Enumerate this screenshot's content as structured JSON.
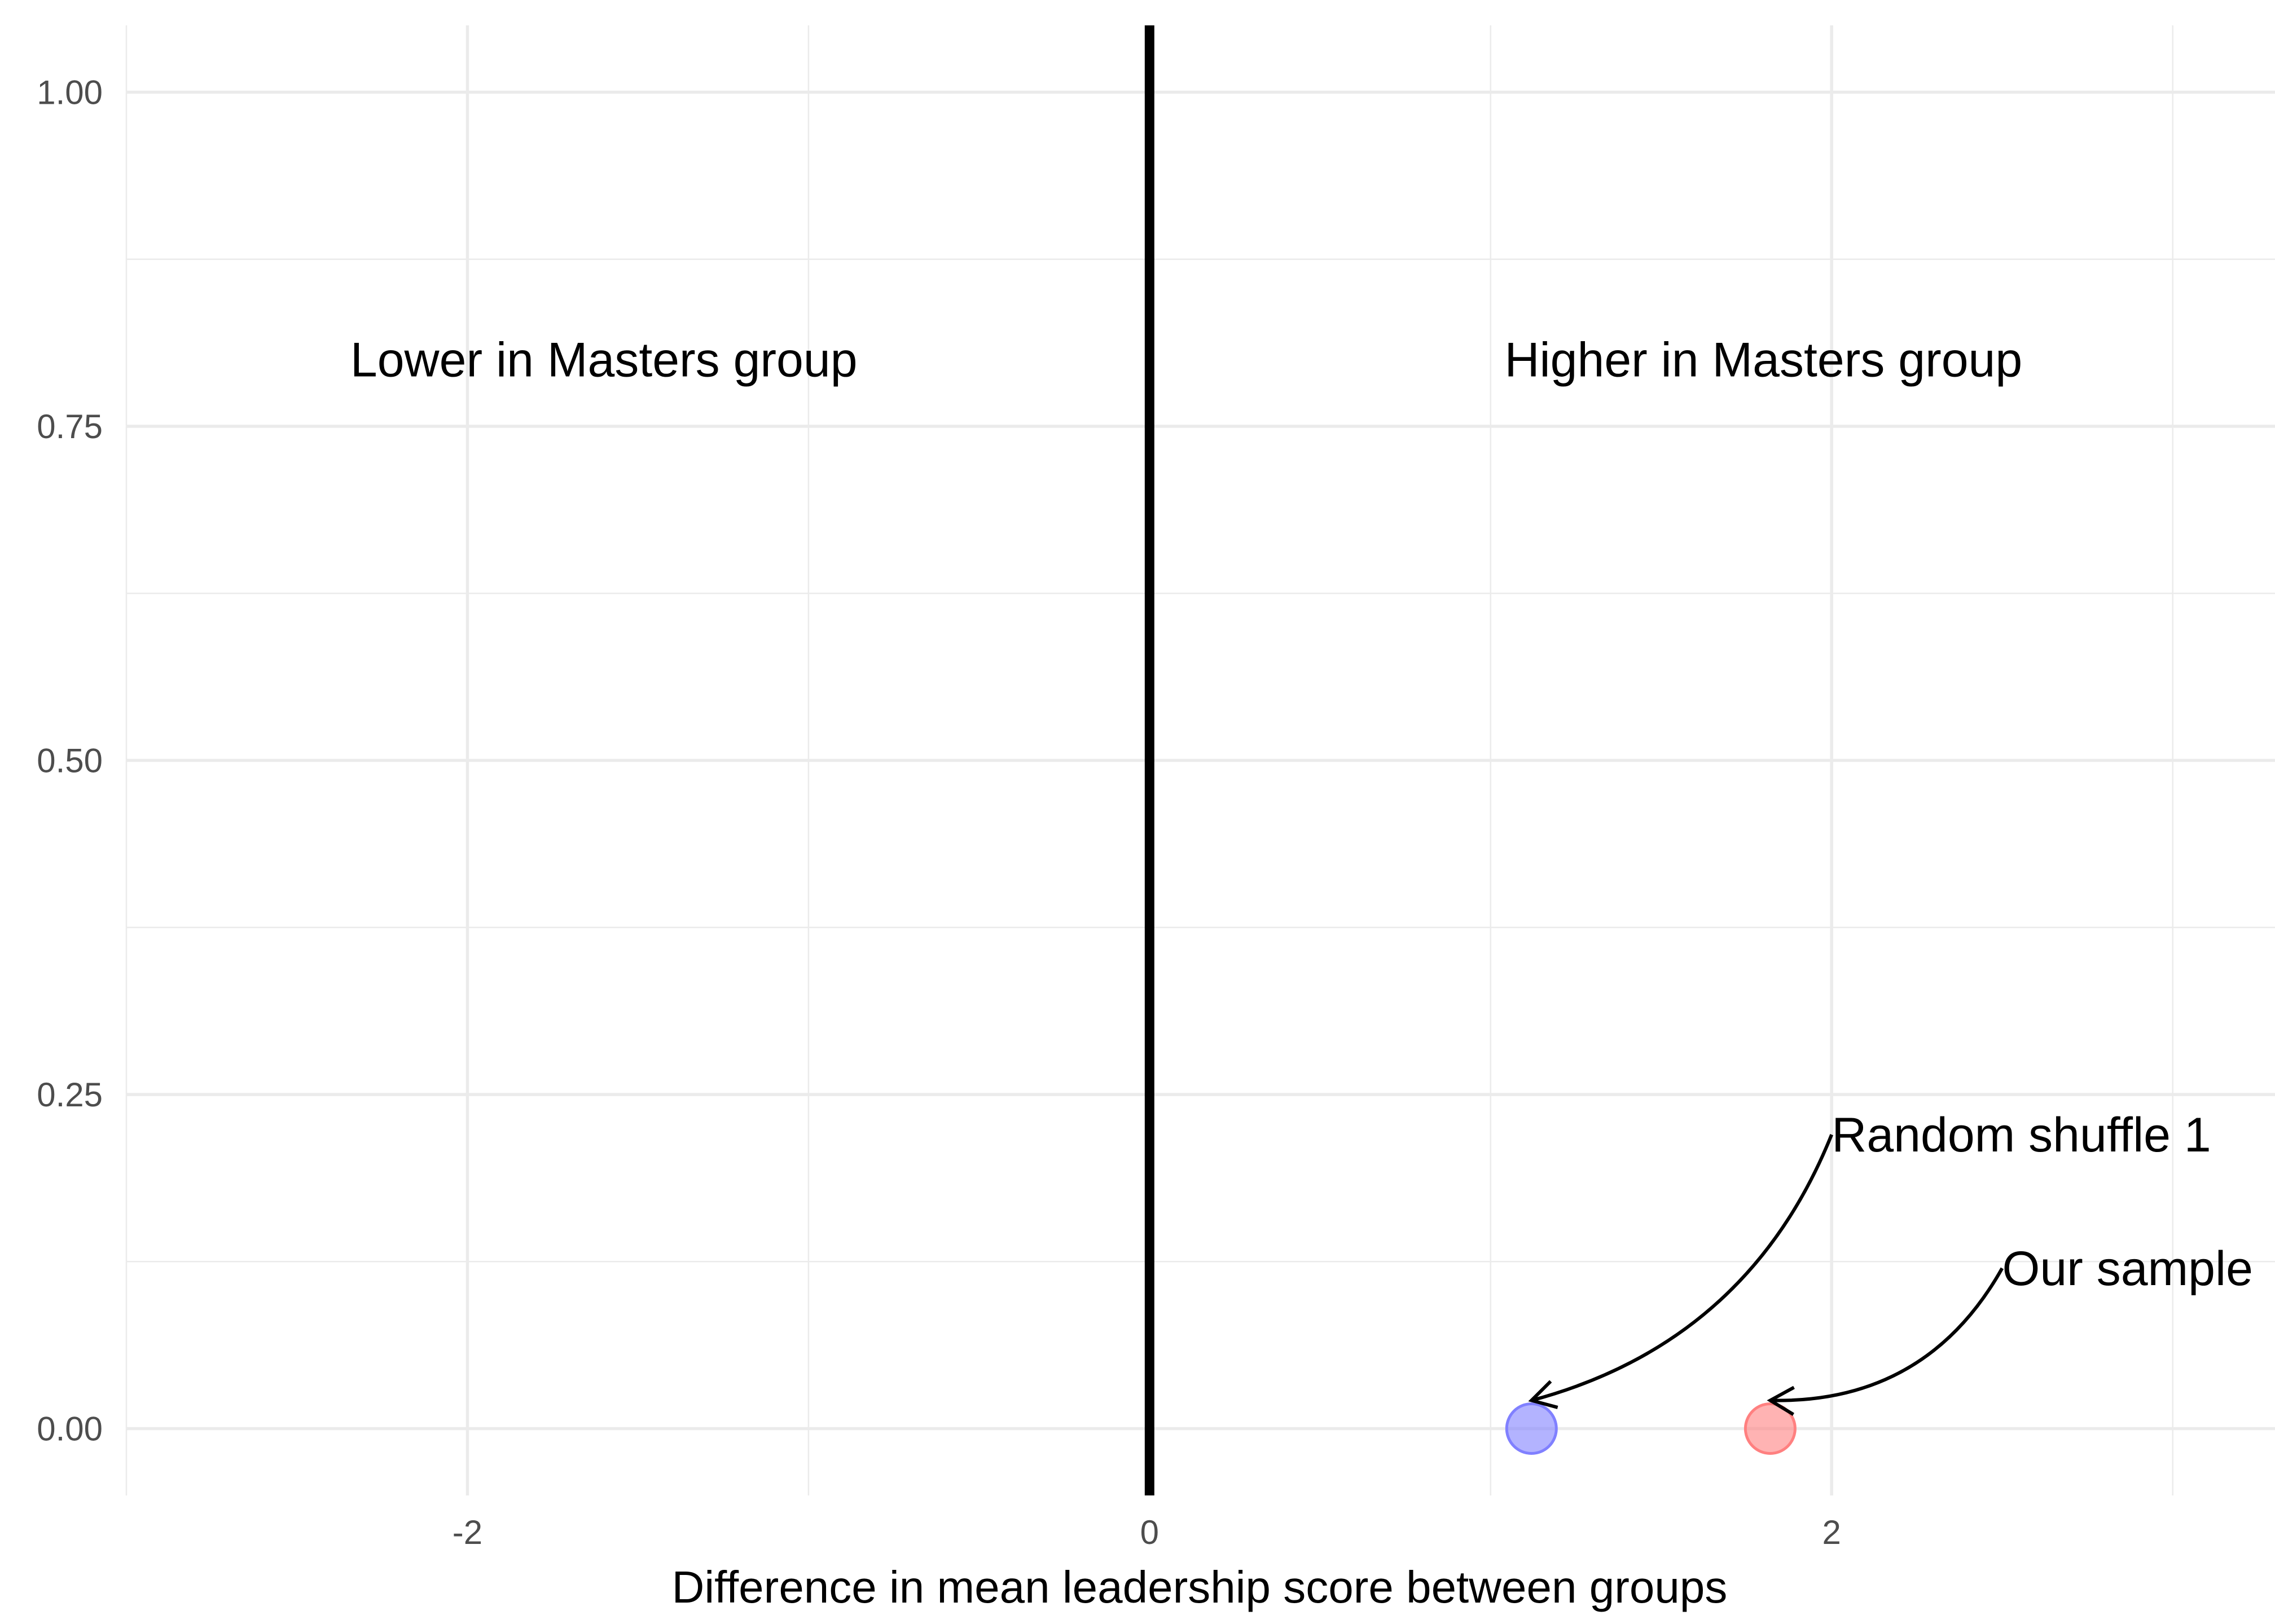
{
  "chart_data": {
    "type": "scatter",
    "title": "",
    "xlabel": "Difference in mean leadership score between groups",
    "ylabel": "",
    "xlim": [
      -3.0,
      3.3
    ],
    "ylim": [
      -0.05,
      1.05
    ],
    "x_ticks": [
      -2,
      0,
      2
    ],
    "x_tick_labels": [
      "-2",
      "0",
      "2"
    ],
    "y_ticks": [
      0,
      0.25,
      0.5,
      0.75,
      1.0
    ],
    "y_tick_labels": [
      "0.00",
      "0.25",
      "0.50",
      "0.75",
      "1.00"
    ],
    "grid": true,
    "legend": "none",
    "reference_line": {
      "x": 0,
      "color": "#000000"
    },
    "points": [
      {
        "x": 1.12,
        "y": 0,
        "color": "#8080ff",
        "label": "Random shuffle 1"
      },
      {
        "x": 1.82,
        "y": 0,
        "color": "#ff8080",
        "label": "Our sample"
      }
    ],
    "region_labels": [
      {
        "text": "Lower in Masters group",
        "x": -1.6,
        "y": 0.8
      },
      {
        "text": "Higher in Masters group",
        "x": 1.8,
        "y": 0.8
      }
    ],
    "annotations": [
      {
        "text": "Random shuffle 1",
        "x": 2.0,
        "y": 0.22,
        "target_index": 0,
        "curve": -0.25
      },
      {
        "text": "Our sample",
        "x": 2.5,
        "y": 0.12,
        "target_index": 1,
        "curve": -0.3
      }
    ]
  }
}
